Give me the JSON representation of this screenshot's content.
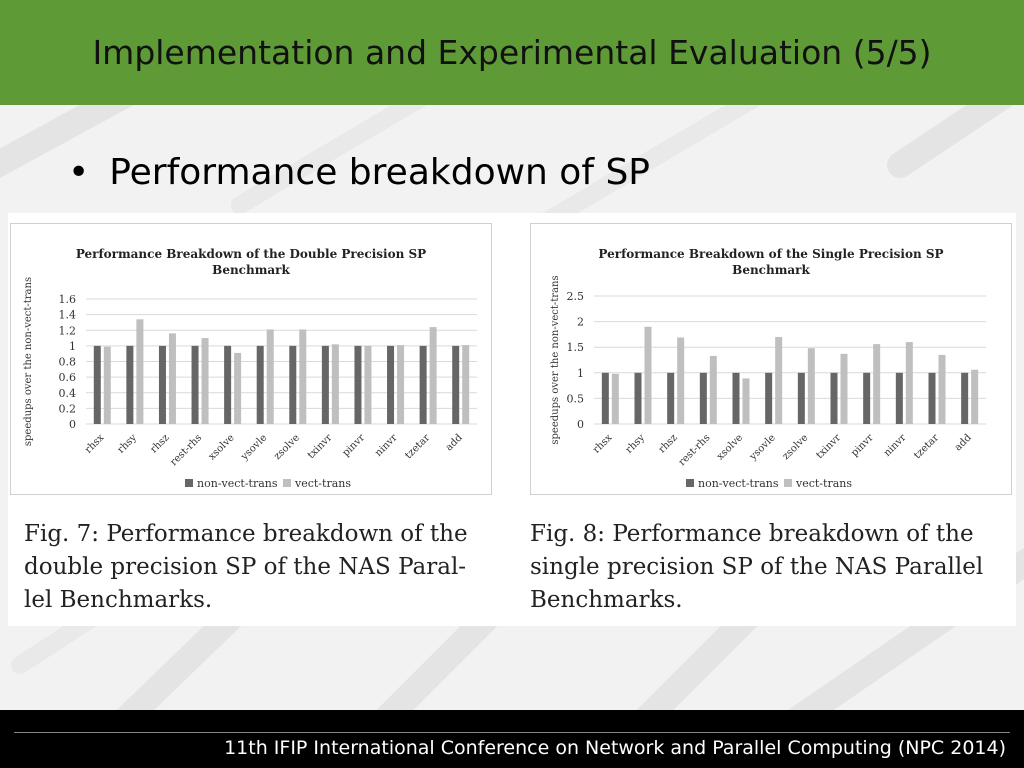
{
  "slide": {
    "title": "Implementation and Experimental Evaluation (5/5)",
    "bullet": "Performance breakdown of SP",
    "footer": "11th IFIP International Conference on Network and Parallel Computing (NPC 2014)"
  },
  "colors": {
    "header_bg": "#5e9a35",
    "series_non_vect": "#666666",
    "series_vect": "#bfbfbf"
  },
  "chart_data": [
    {
      "type": "bar",
      "title": "Performance Breakdown of the Double Precision SP Benchmark",
      "title_lines": [
        "Performance Breakdown of the Double Precision SP",
        "Benchmark"
      ],
      "xlabel": "",
      "ylabel": "speedups over the non-vect-trans",
      "ylim": [
        0,
        1.6
      ],
      "yticks": [
        "1.6",
        "1.4",
        "1.2",
        "1",
        "0.8",
        "0.6",
        "0.4",
        "0.2",
        "0"
      ],
      "grid": true,
      "legend": "bottom",
      "categories": [
        "rhsx",
        "rhsy",
        "rhsz",
        "rest-rhs",
        "xsolve",
        "ysovle",
        "zsolve",
        "txinvr",
        "pinvr",
        "ninvr",
        "tzetar",
        "add"
      ],
      "series": [
        {
          "name": "non-vect-trans",
          "values": [
            1,
            1,
            1,
            1,
            1,
            1,
            1,
            1,
            1,
            1,
            1,
            1
          ]
        },
        {
          "name": "vect-trans",
          "values": [
            0.99,
            1.34,
            1.16,
            1.1,
            0.91,
            1.21,
            1.21,
            1.02,
            1.0,
            1.01,
            1.24,
            1.01
          ]
        }
      ],
      "caption_lines": [
        "Fig. 7: Performance breakdown of the",
        "double precision SP of the NAS Paral-",
        "lel Benchmarks."
      ]
    },
    {
      "type": "bar",
      "title": "Performance Breakdown of the Single Precision SP Benchmark",
      "title_lines": [
        "Performance Breakdown of the Single Precision SP",
        "Benchmark"
      ],
      "xlabel": "",
      "ylabel": "speedups over the non-vect-trans",
      "ylim": [
        0,
        2.5
      ],
      "yticks": [
        "2.5",
        "2",
        "1.5",
        "1",
        "0.5",
        "0"
      ],
      "grid": true,
      "legend": "bottom",
      "categories": [
        "rhsx",
        "rhsy",
        "rhsz",
        "rest-rhs",
        "xsolve",
        "ysovle",
        "zsolve",
        "txinvr",
        "pinvr",
        "ninvr",
        "tzetar",
        "add"
      ],
      "series": [
        {
          "name": "non-vect-trans",
          "values": [
            1,
            1,
            1,
            1,
            1,
            1,
            1,
            1,
            1,
            1,
            1,
            1
          ]
        },
        {
          "name": "vect-trans",
          "values": [
            0.98,
            1.9,
            1.69,
            1.33,
            0.89,
            1.7,
            1.48,
            1.37,
            1.56,
            1.6,
            1.35,
            1.06
          ]
        }
      ],
      "caption_lines": [
        "Fig. 8: Performance breakdown of the",
        "single precision SP of the NAS Parallel",
        "Benchmarks."
      ]
    }
  ]
}
